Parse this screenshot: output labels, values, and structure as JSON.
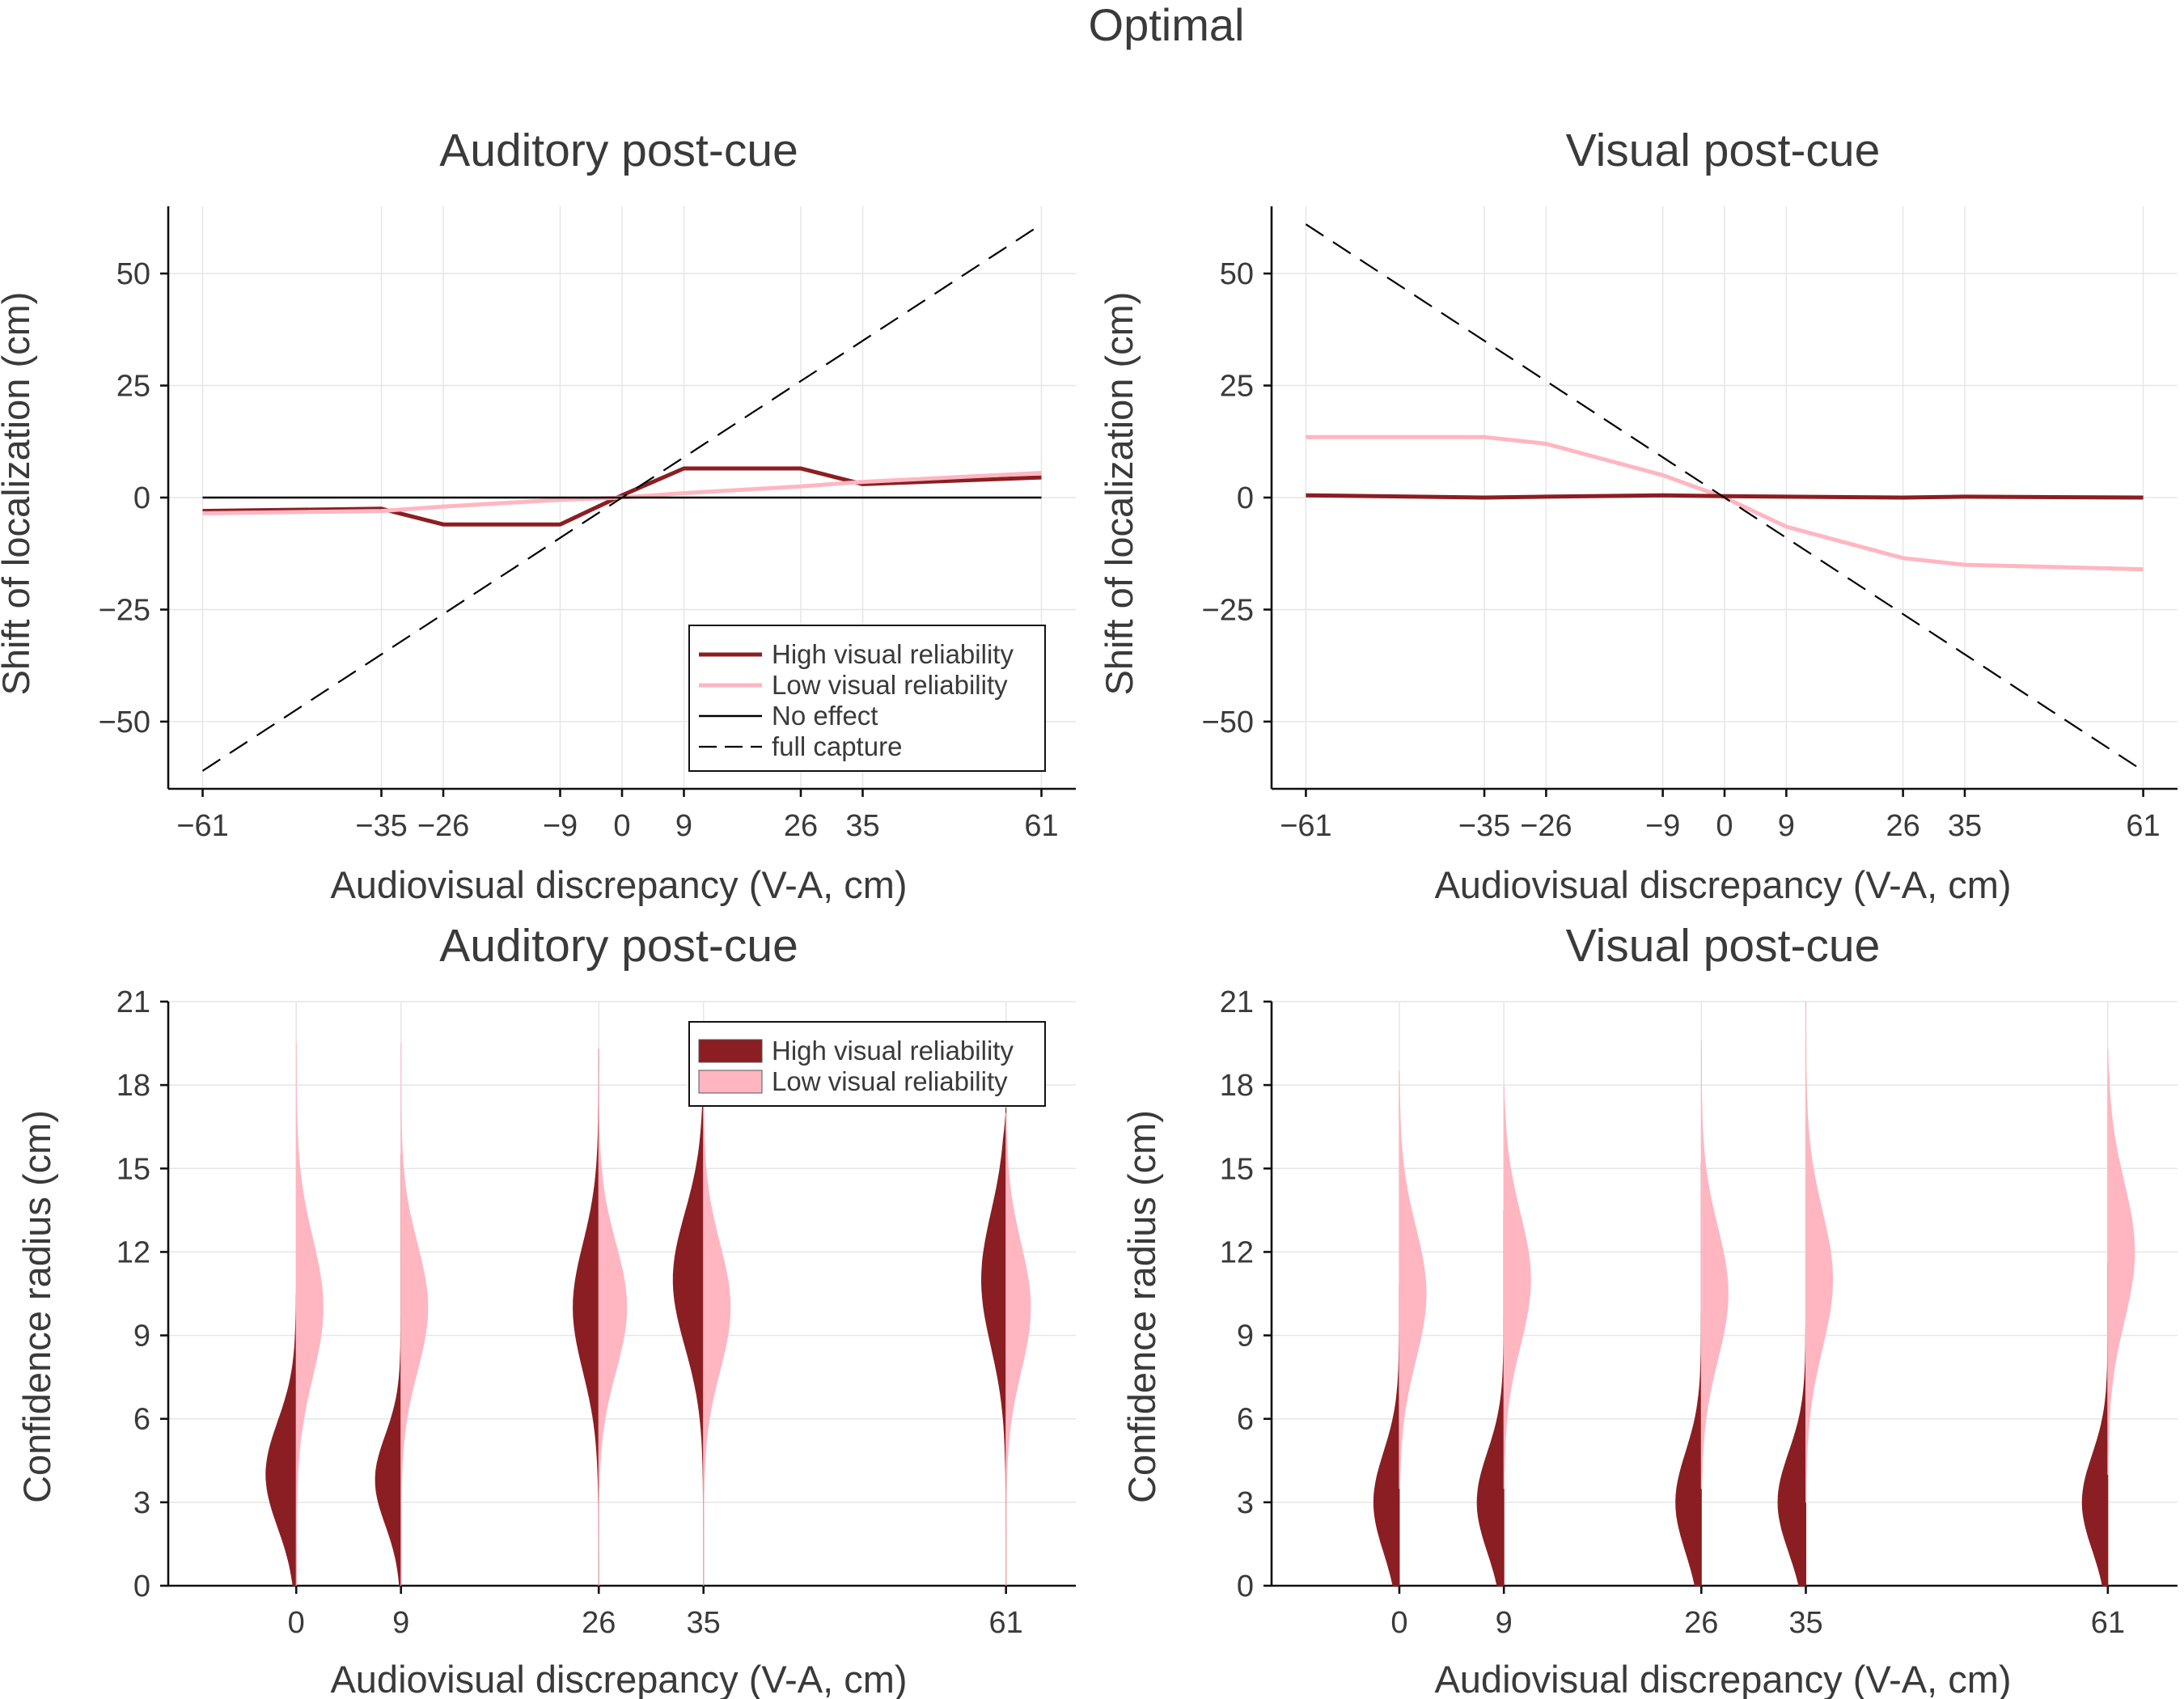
{
  "title": "Optimal",
  "colors": {
    "high": "#8b1e22",
    "low": "#ffb6c1",
    "no_effect": "#000000",
    "capture": "#000000",
    "text": "#3a3a3a"
  },
  "chart_data": [
    {
      "id": "top-left",
      "type": "line",
      "title": "Auditory post-cue",
      "xlabel": "Audiovisual discrepancy (V-A, cm)",
      "ylabel": "Shift of localization (cm)",
      "xlim": [
        -66,
        66
      ],
      "ylim": [
        -65,
        65
      ],
      "xticks": [
        -61,
        -35,
        -26,
        -9,
        0,
        9,
        26,
        35,
        61
      ],
      "yticks": [
        -50,
        -25,
        0,
        25,
        50
      ],
      "xtick_labels": [
        "−61",
        "−35",
        "−26",
        "−9",
        "0",
        "9",
        "26",
        "35",
        "61"
      ],
      "ytick_labels": [
        "−50",
        "−25",
        "0",
        "25",
        "50"
      ],
      "grid": true,
      "legend_position": "lower-right",
      "x": [
        -61,
        -35,
        -26,
        -9,
        0,
        9,
        26,
        35,
        61
      ],
      "series": [
        {
          "name": "High visual reliability",
          "values": [
            -3,
            -2.5,
            -6,
            -6,
            0.5,
            6.5,
            6.5,
            3,
            4.5
          ]
        },
        {
          "name": "Low visual reliability",
          "values": [
            -3.5,
            -3,
            -2,
            -0.5,
            0,
            1,
            2.5,
            3.5,
            5.5
          ]
        },
        {
          "name": "No effect",
          "values": [
            0,
            0,
            0,
            0,
            0,
            0,
            0,
            0,
            0
          ]
        },
        {
          "name": "full capture",
          "values": [
            -61,
            -35,
            -26,
            -9,
            0,
            9,
            26,
            35,
            61
          ]
        }
      ]
    },
    {
      "id": "top-right",
      "type": "line",
      "title": "Visual post-cue",
      "xlabel": "Audiovisual discrepancy (V-A, cm)",
      "ylabel": "Shift of localization (cm)",
      "xlim": [
        -66,
        66
      ],
      "ylim": [
        -65,
        65
      ],
      "xticks": [
        -61,
        -35,
        -26,
        -9,
        0,
        9,
        26,
        35,
        61
      ],
      "yticks": [
        -50,
        -25,
        0,
        25,
        50
      ],
      "xtick_labels": [
        "−61",
        "−35",
        "−26",
        "−9",
        "0",
        "9",
        "26",
        "35",
        "61"
      ],
      "ytick_labels": [
        "−50",
        "−25",
        "0",
        "25",
        "50"
      ],
      "grid": true,
      "x": [
        -61,
        -35,
        -26,
        -9,
        0,
        9,
        26,
        35,
        61
      ],
      "series": [
        {
          "name": "Low visual reliability",
          "values": [
            13.5,
            13.5,
            12,
            5,
            0,
            -6.5,
            -13.5,
            -15,
            -16
          ]
        },
        {
          "name": "High visual reliability",
          "values": [
            0.5,
            0,
            0.2,
            0.5,
            0.3,
            0.2,
            0,
            0.2,
            0
          ]
        },
        {
          "name": "full capture",
          "values": [
            61,
            35,
            26,
            9,
            0,
            -9,
            -26,
            -35,
            -61
          ]
        }
      ]
    },
    {
      "id": "bottom-left",
      "type": "violin",
      "title": "Auditory post-cue",
      "xlabel": "Audiovisual discrepancy (V-A, cm)",
      "ylabel": "Confidence radius (cm)",
      "xlim": [
        -11,
        67
      ],
      "ylim": [
        0,
        21
      ],
      "xticks": [
        0,
        9,
        26,
        35,
        61
      ],
      "yticks": [
        0,
        3,
        6,
        9,
        12,
        15,
        18,
        21
      ],
      "xtick_labels": [
        "0",
        "9",
        "26",
        "35",
        "61"
      ],
      "ytick_labels": [
        "0",
        "3",
        "6",
        "9",
        "12",
        "15",
        "18",
        "21"
      ],
      "grid": true,
      "legend_position": "top-right",
      "series": [
        {
          "name": "High visual reliability",
          "side": "left",
          "groups": [
            {
              "x": 0,
              "min": 0,
              "max": 10.5,
              "mode": 4.0,
              "spread": 1.9,
              "width": 2.6
            },
            {
              "x": 9,
              "min": 0,
              "max": 15.5,
              "mode": 3.8,
              "spread": 1.6,
              "width": 2.2
            },
            {
              "x": 26,
              "min": 0,
              "max": 19.3,
              "mode": 10.0,
              "spread": 2.3,
              "width": 2.2
            },
            {
              "x": 35,
              "min": 0,
              "max": 18.7,
              "mode": 11.0,
              "spread": 2.4,
              "width": 2.6
            },
            {
              "x": 61,
              "min": 0,
              "max": 17.2,
              "mode": 11.0,
              "spread": 2.4,
              "width": 2.1
            }
          ]
        },
        {
          "name": "Low visual reliability",
          "side": "right",
          "groups": [
            {
              "x": 0,
              "min": 0,
              "max": 19.5,
              "mode": 10.0,
              "spread": 2.5,
              "width": 2.3
            },
            {
              "x": 9,
              "min": 0,
              "max": 19.5,
              "mode": 10.0,
              "spread": 2.3,
              "width": 2.3
            },
            {
              "x": 26,
              "min": 0,
              "max": 19.3,
              "mode": 10.0,
              "spread": 2.3,
              "width": 2.4
            },
            {
              "x": 35,
              "min": 0,
              "max": 18.8,
              "mode": 10.0,
              "spread": 2.3,
              "width": 2.3
            },
            {
              "x": 61,
              "min": 0,
              "max": 17.0,
              "mode": 10.0,
              "spread": 2.3,
              "width": 2.1
            }
          ]
        }
      ]
    },
    {
      "id": "bottom-right",
      "type": "violin",
      "title": "Visual post-cue",
      "xlabel": "Audiovisual discrepancy (V-A, cm)",
      "ylabel": "Confidence radius (cm)",
      "xlim": [
        -11,
        67
      ],
      "ylim": [
        0,
        21
      ],
      "xticks": [
        0,
        9,
        26,
        35,
        61
      ],
      "yticks": [
        0,
        3,
        6,
        9,
        12,
        15,
        18,
        21
      ],
      "xtick_labels": [
        "0",
        "9",
        "26",
        "35",
        "61"
      ],
      "ytick_labels": [
        "0",
        "3",
        "6",
        "9",
        "12",
        "15",
        "18",
        "21"
      ],
      "grid": true,
      "series": [
        {
          "name": "High visual reliability",
          "side": "left",
          "groups": [
            {
              "x": 0,
              "min": 0,
              "max": 10.8,
              "mode": 3.0,
              "spread": 1.8,
              "width": 2.2
            },
            {
              "x": 9,
              "min": 0,
              "max": 13.5,
              "mode": 3.0,
              "spread": 1.8,
              "width": 2.3
            },
            {
              "x": 26,
              "min": 0,
              "max": 15.2,
              "mode": 3.0,
              "spread": 1.8,
              "width": 2.2
            },
            {
              "x": 35,
              "min": 0,
              "max": 12.1,
              "mode": 3.0,
              "spread": 1.8,
              "width": 2.4
            },
            {
              "x": 61,
              "min": 0,
              "max": 11.6,
              "mode": 3.0,
              "spread": 1.7,
              "width": 2.2
            }
          ]
        },
        {
          "name": "Low visual reliability",
          "side": "right",
          "groups": [
            {
              "x": 0,
              "min": 3.5,
              "max": 18.5,
              "mode": 10.5,
              "spread": 2.4,
              "width": 2.3
            },
            {
              "x": 9,
              "min": 3.5,
              "max": 18.0,
              "mode": 11.0,
              "spread": 2.4,
              "width": 2.3
            },
            {
              "x": 26,
              "min": 3.5,
              "max": 19.6,
              "mode": 10.5,
              "spread": 2.4,
              "width": 2.3
            },
            {
              "x": 35,
              "min": 3.0,
              "max": 21.0,
              "mode": 11.0,
              "spread": 2.5,
              "width": 2.3
            },
            {
              "x": 61,
              "min": 4.0,
              "max": 19.3,
              "mode": 12.0,
              "spread": 2.5,
              "width": 2.3
            }
          ]
        }
      ]
    }
  ]
}
